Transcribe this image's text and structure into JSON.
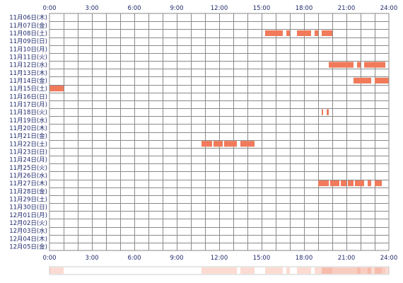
{
  "chart_data": {
    "type": "timeline",
    "x_unit": "hour of day",
    "x_range": [
      0,
      24
    ],
    "x_ticks": [
      "0:00",
      "3:00",
      "6:00",
      "9:00",
      "12:00",
      "15:00",
      "18:00",
      "21:00",
      "24:00"
    ],
    "rows": [
      "11月06日(木)",
      "11月07日(金)",
      "11月08日(土)",
      "11月09日(日)",
      "11月10日(月)",
      "11月11日(火)",
      "11月12日(水)",
      "11月13日(木)",
      "11月14日(金)",
      "11月15日(土)",
      "11月16日(日)",
      "11月17日(月)",
      "11月18日(火)",
      "11月19日(水)",
      "11月20日(木)",
      "11月21日(金)",
      "11月22日(土)",
      "11月23日(日)",
      "11月24日(月)",
      "11月25日(火)",
      "11月26日(水)",
      "11月27日(木)",
      "11月28日(金)",
      "11月29日(土)",
      "11月30日(日)",
      "12月01日(月)",
      "12月02日(火)",
      "12月03日(水)",
      "12月04日(木)",
      "12月05日(金)"
    ],
    "segments": [
      {
        "row": "11月08日(土)",
        "start": 15.25,
        "end": 16.5
      },
      {
        "row": "11月08日(土)",
        "start": 16.75,
        "end": 17.0
      },
      {
        "row": "11月08日(土)",
        "start": 17.5,
        "end": 18.5
      },
      {
        "row": "11月08日(土)",
        "start": 18.75,
        "end": 19.0
      },
      {
        "row": "11月08日(土)",
        "start": 19.25,
        "end": 20.0
      },
      {
        "row": "11月12日(水)",
        "start": 19.75,
        "end": 21.5
      },
      {
        "row": "11月12日(水)",
        "start": 21.75,
        "end": 22.0
      },
      {
        "row": "11月12日(水)",
        "start": 22.25,
        "end": 23.75
      },
      {
        "row": "11月14日(金)",
        "start": 21.5,
        "end": 22.75
      },
      {
        "row": "11月14日(金)",
        "start": 23.0,
        "end": 24.0
      },
      {
        "row": "11月15日(土)",
        "start": 0.0,
        "end": 1.0
      },
      {
        "row": "11月18日(火)",
        "start": 19.25,
        "end": 19.35
      },
      {
        "row": "11月18日(火)",
        "start": 19.6,
        "end": 19.75
      },
      {
        "row": "11月22日(土)",
        "start": 10.75,
        "end": 11.5
      },
      {
        "row": "11月22日(土)",
        "start": 11.6,
        "end": 12.25
      },
      {
        "row": "11月22日(土)",
        "start": 12.35,
        "end": 13.25
      },
      {
        "row": "11月22日(土)",
        "start": 13.5,
        "end": 14.5
      },
      {
        "row": "11月27日(木)",
        "start": 19.0,
        "end": 19.75
      },
      {
        "row": "11月27日(木)",
        "start": 19.85,
        "end": 20.5
      },
      {
        "row": "11月27日(木)",
        "start": 20.6,
        "end": 21.0
      },
      {
        "row": "11月27日(木)",
        "start": 21.1,
        "end": 21.5
      },
      {
        "row": "11月27日(木)",
        "start": 21.6,
        "end": 22.25
      },
      {
        "row": "11月27日(木)",
        "start": 22.5,
        "end": 22.75
      },
      {
        "row": "11月27日(木)",
        "start": 23.0,
        "end": 23.5
      }
    ],
    "bar_color": "#f07a5a",
    "grid": true,
    "summary_strip": true,
    "summary_color": "#f07a5a",
    "grid_color": "#8a8a8a",
    "label_color": "#1f2a6b"
  }
}
